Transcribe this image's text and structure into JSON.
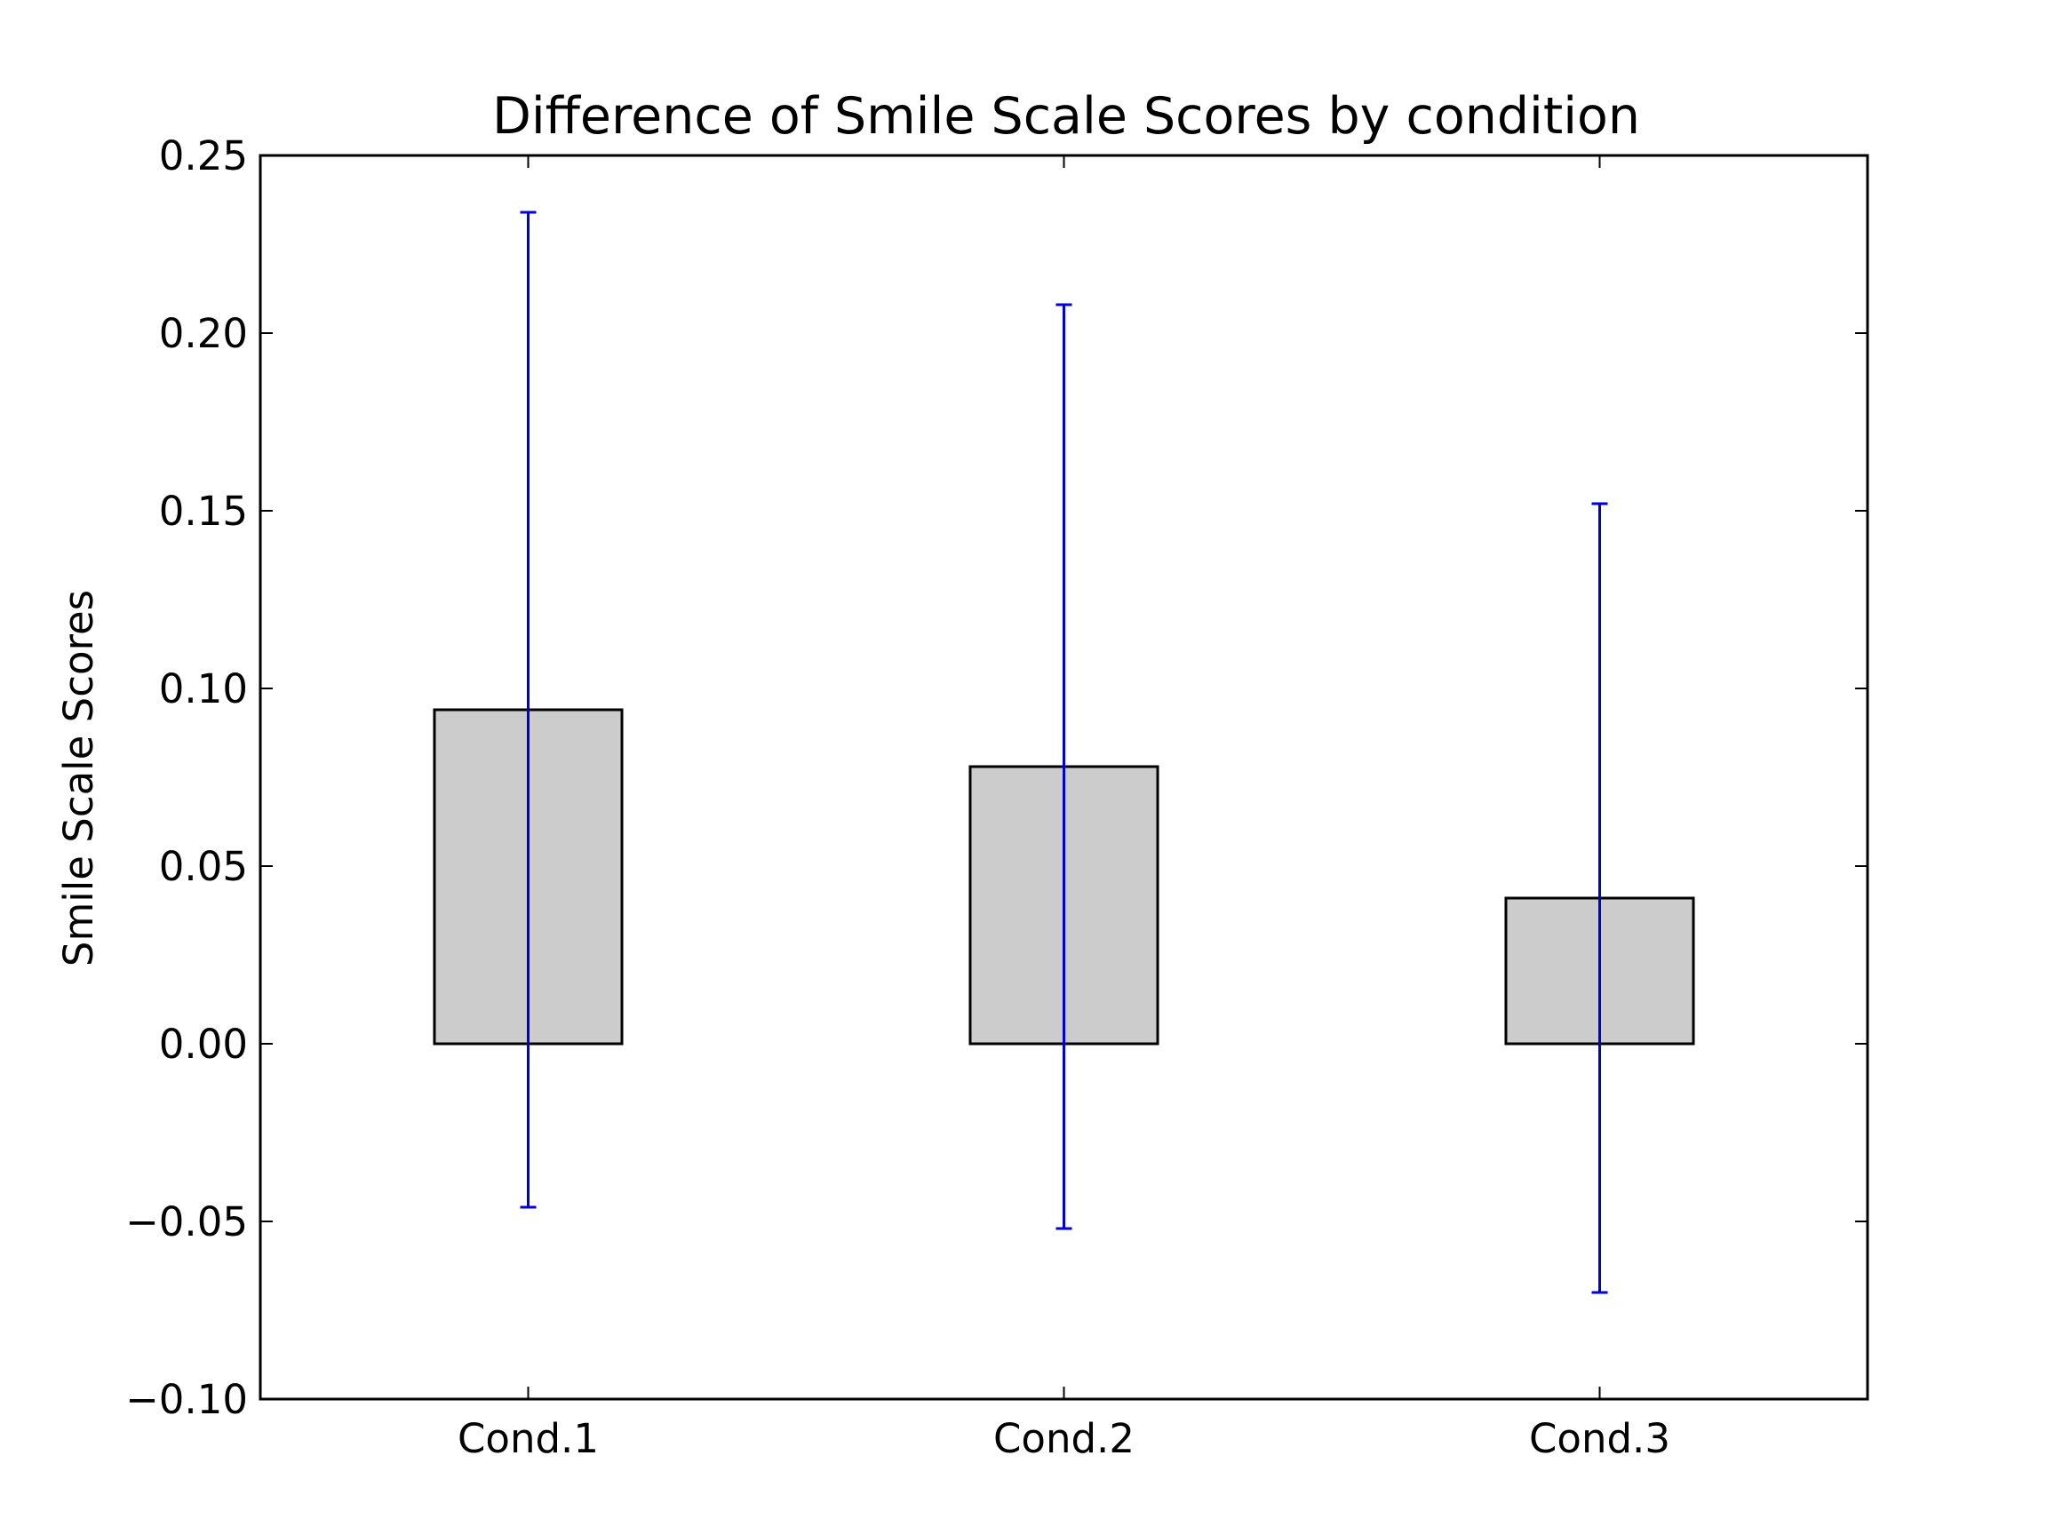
{
  "chart_data": {
    "type": "bar",
    "title": "Difference of Smile Scale Scores by condition",
    "xlabel": "",
    "ylabel": "Smile Scale Scores",
    "categories": [
      "Cond.1",
      "Cond.2",
      "Cond.3"
    ],
    "values": [
      0.094,
      0.078,
      0.041
    ],
    "error_low": [
      -0.046,
      -0.052,
      -0.07
    ],
    "error_high": [
      0.234,
      0.208,
      0.152
    ],
    "ylim": [
      -0.1,
      0.25
    ],
    "yticks": [
      -0.1,
      -0.05,
      0.0,
      0.05,
      0.1,
      0.15,
      0.2,
      0.25
    ],
    "ytick_labels": [
      "−0.10",
      "−0.05",
      "0.00",
      "0.05",
      "0.10",
      "0.15",
      "0.20",
      "0.25"
    ],
    "grid": false,
    "colors": {
      "bar_fill": "#cccccc",
      "bar_edge": "#000000",
      "error_bar": "#0000dd"
    }
  }
}
